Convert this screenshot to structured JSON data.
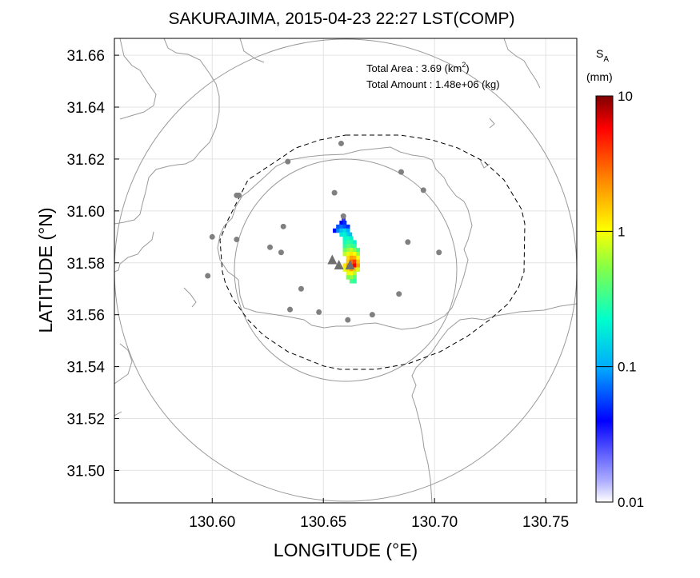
{
  "title": "SAKURAJIMA, 2015-04-23 22:27 LST(COMP)",
  "info": {
    "area_label": "Total Area   : 3.69 (km",
    "area_sup": "2",
    "area_close": ")",
    "amount_label": "Total Amount : 1.48e+06 (kg)"
  },
  "axes": {
    "xlabel": "LONGITUDE (°E)",
    "ylabel": "LATITUDE (°N)",
    "xlim": [
      130.556,
      130.764
    ],
    "ylim": [
      31.4875,
      31.6665
    ],
    "xticks": [
      "130.60",
      "130.65",
      "130.70",
      "130.75"
    ],
    "yticks": [
      "31.66",
      "31.64",
      "31.62",
      "31.60",
      "31.58",
      "31.56",
      "31.54",
      "31.52",
      "31.50"
    ],
    "grid": true
  },
  "colorbar": {
    "symbol": "S",
    "subscript": "A",
    "unit": "(mm)",
    "ticks": [
      "10",
      "1",
      "0.1",
      "0.01"
    ],
    "scale": "log",
    "range": [
      0.01,
      10
    ]
  },
  "colors": {
    "station": "#808080",
    "vent": "#6f6f6f",
    "range_circle": "#9a9a9a",
    "coast": "#9a9a9a",
    "boundary": "#000000"
  },
  "map_data": {
    "range_circles": [
      {
        "center": [
          130.6557,
          31.5785
        ],
        "radius_deg_lon": 0.105
      },
      {
        "center": [
          130.6557,
          31.5785
        ],
        "radius_deg_lon": 0.0505
      }
    ],
    "stations": [
      [
        130.658,
        31.626
      ],
      [
        130.634,
        31.619
      ],
      [
        130.612,
        31.606
      ],
      [
        130.611,
        31.606
      ],
      [
        130.655,
        31.607
      ],
      [
        130.685,
        31.615
      ],
      [
        130.695,
        31.608
      ],
      [
        130.659,
        31.598
      ],
      [
        130.632,
        31.594
      ],
      [
        130.6,
        31.59
      ],
      [
        130.611,
        31.589
      ],
      [
        130.626,
        31.586
      ],
      [
        130.631,
        31.584
      ],
      [
        130.688,
        31.588
      ],
      [
        130.702,
        31.584
      ],
      [
        130.598,
        31.575
      ],
      [
        130.64,
        31.57
      ],
      [
        130.684,
        31.568
      ],
      [
        130.635,
        31.562
      ],
      [
        130.648,
        31.561
      ],
      [
        130.672,
        31.56
      ],
      [
        130.661,
        31.558
      ]
    ],
    "vents": [
      [
        130.654,
        31.581
      ],
      [
        130.657,
        31.579
      ],
      [
        130.662,
        31.579
      ]
    ],
    "deposit_cells": [
      {
        "lon": 130.659,
        "lat": 31.597,
        "sa": 0.03
      },
      {
        "lon": 130.658,
        "lat": 31.5955,
        "sa": 0.04
      },
      {
        "lon": 130.6595,
        "lat": 31.5955,
        "sa": 0.05
      },
      {
        "lon": 130.6565,
        "lat": 31.594,
        "sa": 0.06
      },
      {
        "lon": 130.658,
        "lat": 31.594,
        "sa": 0.07
      },
      {
        "lon": 130.6595,
        "lat": 31.594,
        "sa": 0.06
      },
      {
        "lon": 130.661,
        "lat": 31.594,
        "sa": 0.05
      },
      {
        "lon": 130.655,
        "lat": 31.5925,
        "sa": 0.04
      },
      {
        "lon": 130.6565,
        "lat": 31.5925,
        "sa": 0.08
      },
      {
        "lon": 130.658,
        "lat": 31.5925,
        "sa": 0.12
      },
      {
        "lon": 130.6595,
        "lat": 31.5925,
        "sa": 0.15
      },
      {
        "lon": 130.661,
        "lat": 31.5925,
        "sa": 0.1
      },
      {
        "lon": 130.658,
        "lat": 31.591,
        "sa": 0.18
      },
      {
        "lon": 130.6595,
        "lat": 31.591,
        "sa": 0.2
      },
      {
        "lon": 130.661,
        "lat": 31.591,
        "sa": 0.15
      },
      {
        "lon": 130.662,
        "lat": 31.591,
        "sa": 0.12
      },
      {
        "lon": 130.6595,
        "lat": 31.5895,
        "sa": 0.22
      },
      {
        "lon": 130.661,
        "lat": 31.5895,
        "sa": 0.25
      },
      {
        "lon": 130.6625,
        "lat": 31.5895,
        "sa": 0.2
      },
      {
        "lon": 130.6595,
        "lat": 31.588,
        "sa": 0.25
      },
      {
        "lon": 130.661,
        "lat": 31.588,
        "sa": 0.3
      },
      {
        "lon": 130.6625,
        "lat": 31.588,
        "sa": 0.28
      },
      {
        "lon": 130.664,
        "lat": 31.588,
        "sa": 0.2
      },
      {
        "lon": 130.6595,
        "lat": 31.5865,
        "sa": 0.3
      },
      {
        "lon": 130.661,
        "lat": 31.5865,
        "sa": 0.4
      },
      {
        "lon": 130.6625,
        "lat": 31.5865,
        "sa": 0.35
      },
      {
        "lon": 130.664,
        "lat": 31.5865,
        "sa": 0.3
      },
      {
        "lon": 130.6595,
        "lat": 31.585,
        "sa": 0.45
      },
      {
        "lon": 130.661,
        "lat": 31.585,
        "sa": 0.6
      },
      {
        "lon": 130.6625,
        "lat": 31.585,
        "sa": 0.7
      },
      {
        "lon": 130.664,
        "lat": 31.585,
        "sa": 0.5
      },
      {
        "lon": 130.6655,
        "lat": 31.585,
        "sa": 0.35
      },
      {
        "lon": 130.6595,
        "lat": 31.5835,
        "sa": 0.7
      },
      {
        "lon": 130.661,
        "lat": 31.5835,
        "sa": 0.9
      },
      {
        "lon": 130.6625,
        "lat": 31.5835,
        "sa": 1.2
      },
      {
        "lon": 130.664,
        "lat": 31.5835,
        "sa": 1.0
      },
      {
        "lon": 130.6655,
        "lat": 31.5835,
        "sa": 0.6
      },
      {
        "lon": 130.661,
        "lat": 31.582,
        "sa": 1.3
      },
      {
        "lon": 130.6625,
        "lat": 31.582,
        "sa": 2.0
      },
      {
        "lon": 130.664,
        "lat": 31.582,
        "sa": 1.8
      },
      {
        "lon": 130.6655,
        "lat": 31.582,
        "sa": 1.0
      },
      {
        "lon": 130.661,
        "lat": 31.5805,
        "sa": 1.5
      },
      {
        "lon": 130.6625,
        "lat": 31.5805,
        "sa": 3.0
      },
      {
        "lon": 130.664,
        "lat": 31.5805,
        "sa": 4.0
      },
      {
        "lon": 130.6655,
        "lat": 31.5805,
        "sa": 1.5
      },
      {
        "lon": 130.6595,
        "lat": 31.579,
        "sa": 1.2
      },
      {
        "lon": 130.661,
        "lat": 31.579,
        "sa": 2.0
      },
      {
        "lon": 130.6625,
        "lat": 31.579,
        "sa": 3.5
      },
      {
        "lon": 130.664,
        "lat": 31.579,
        "sa": 6.0
      },
      {
        "lon": 130.6655,
        "lat": 31.579,
        "sa": 2.0
      },
      {
        "lon": 130.6595,
        "lat": 31.5775,
        "sa": 0.9
      },
      {
        "lon": 130.661,
        "lat": 31.5775,
        "sa": 1.3
      },
      {
        "lon": 130.6625,
        "lat": 31.5775,
        "sa": 2.0
      },
      {
        "lon": 130.664,
        "lat": 31.5775,
        "sa": 1.5
      },
      {
        "lon": 130.6655,
        "lat": 31.5775,
        "sa": 0.8
      },
      {
        "lon": 130.661,
        "lat": 31.576,
        "sa": 0.9
      },
      {
        "lon": 130.6625,
        "lat": 31.576,
        "sa": 1.0
      },
      {
        "lon": 130.664,
        "lat": 31.576,
        "sa": 0.7
      },
      {
        "lon": 130.661,
        "lat": 31.5745,
        "sa": 0.5
      },
      {
        "lon": 130.6625,
        "lat": 31.5745,
        "sa": 0.6
      },
      {
        "lon": 130.664,
        "lat": 31.5745,
        "sa": 0.4
      },
      {
        "lon": 130.6625,
        "lat": 31.573,
        "sa": 0.35
      },
      {
        "lon": 130.664,
        "lat": 31.573,
        "sa": 0.3
      }
    ]
  }
}
